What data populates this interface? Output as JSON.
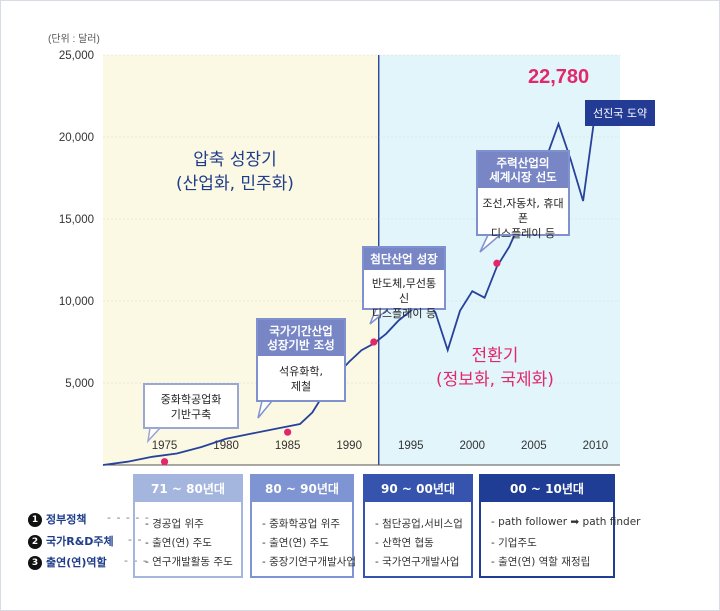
{
  "chart_data": {
    "type": "line",
    "unit_label": "(단위 : 달러)",
    "ylim": [
      0,
      25000
    ],
    "xlim": [
      1970,
      2012
    ],
    "y_ticks": [
      {
        "value": 5000,
        "label": "5,000"
      },
      {
        "value": 10000,
        "label": "10,000"
      },
      {
        "value": 15000,
        "label": "15,000"
      },
      {
        "value": 20000,
        "label": "20,000"
      },
      {
        "value": 25000,
        "label": "25,000"
      }
    ],
    "x_ticks": [
      {
        "value": 1975,
        "label": "1975"
      },
      {
        "value": 1980,
        "label": "1980"
      },
      {
        "value": 1985,
        "label": "1985"
      },
      {
        "value": 1990,
        "label": "1990"
      },
      {
        "value": 1995,
        "label": "1995"
      },
      {
        "value": 2000,
        "label": "2000"
      },
      {
        "value": 2005,
        "label": "2005"
      },
      {
        "value": 2010,
        "label": "2010"
      }
    ],
    "series": [
      {
        "x": [
          1970,
          1972,
          1974,
          1976,
          1978,
          1980,
          1982,
          1984,
          1986,
          1987,
          1988,
          1989,
          1990,
          1991,
          1992,
          1993,
          1994,
          1995,
          1996,
          1997,
          1998,
          1999,
          2000,
          2001,
          2002,
          2003,
          2004,
          2005,
          2006,
          2007,
          2008,
          2009,
          2010
        ],
        "values": [
          0,
          200,
          500,
          700,
          1100,
          1600,
          1900,
          2200,
          2500,
          3200,
          4400,
          5500,
          6300,
          7000,
          7400,
          8000,
          8800,
          9400,
          10300,
          9300,
          7000,
          9400,
          10600,
          10200,
          12100,
          13300,
          15000,
          16900,
          18700,
          20800,
          18600,
          16100,
          21600
        ]
      }
    ],
    "markers": [
      {
        "x": 1975,
        "y": 200
      },
      {
        "x": 1985,
        "y": 2000
      },
      {
        "x": 1992,
        "y": 7500
      },
      {
        "x": 2002,
        "y": 12300
      },
      {
        "x": 2010,
        "y": 21600
      }
    ],
    "era_divider_year": 1992.4,
    "peak_value": "22,780"
  },
  "eras": {
    "first": {
      "title": "압축 성장기\n(산업화, 민주화)",
      "color": "#1f3d8a"
    },
    "second": {
      "title": "전환기\n(정보화, 국제화)",
      "color": "#e2286a"
    }
  },
  "badge": "선진국 도약",
  "annotations": [
    {
      "body": "중화학공업화\n기반구축"
    },
    {
      "head": "국가기간산업\n성장기반 조성",
      "body": "석유화학,\n제철"
    },
    {
      "head": "첨단산업 성장",
      "body": "반도체,무선통신\n디스플레이 등"
    },
    {
      "head": "주력산업의\n세계시장 선도",
      "body": "조선,자동차, 휴대폰\n디스플레이 등"
    }
  ],
  "legend": [
    {
      "num": "1",
      "label": "정부정책"
    },
    {
      "num": "2",
      "label": "국가R&D주체"
    },
    {
      "num": "3",
      "label": "출연(연)역할"
    }
  ],
  "periods": [
    {
      "title": "71 ~ 80년대",
      "rows": [
        "경공업 위주",
        "출연(연) 주도",
        "연구개발활동 주도"
      ]
    },
    {
      "title": "80 ~ 90년대",
      "rows": [
        "중화학공업 위주",
        "출연(연) 주도",
        "중장기연구개발사업"
      ]
    },
    {
      "title": "90 ~ 00년대",
      "rows": [
        "첨단공업,서비스업",
        "산학연 협동",
        "국가연구개발사업"
      ]
    },
    {
      "title": "00 ~ 10년대",
      "rows": [
        "path follower ➡ path finder",
        "기업주도",
        "출연(연) 역할 재정립"
      ]
    }
  ],
  "colors": {
    "early_bg": "#fbf8e3",
    "late_bg": "#e2f5fb",
    "line": "#27429a",
    "marker": "#e2286a",
    "period_heads": [
      "#a5b6de",
      "#7f94d2",
      "#3654ad",
      "#1f3d95"
    ]
  }
}
